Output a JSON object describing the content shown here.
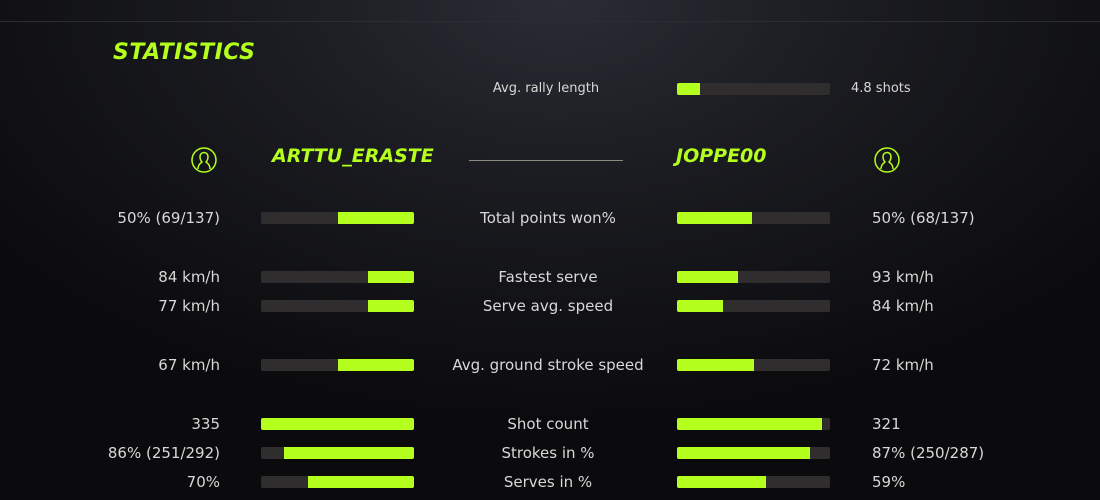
{
  "title": "STATISTICS",
  "accent_color": "#b4ff1e",
  "rally": {
    "label": "Avg. rally length",
    "value": "4.8 shots",
    "fill": 0.15
  },
  "players": {
    "left": {
      "name": "ARTTU_ERASTE",
      "icon": "user-circle-icon"
    },
    "right": {
      "name": "JOPPE00",
      "icon": "user-circle-icon"
    }
  },
  "stats": [
    {
      "label": "Total points won%",
      "left": "50% (69/137)",
      "right": "50% (68/137)",
      "left_fill": 0.5,
      "right_fill": 0.49
    },
    {
      "label": "Fastest serve",
      "left": "84 km/h",
      "right": "93 km/h",
      "left_fill": 0.3,
      "right_fill": 0.4
    },
    {
      "label": "Serve avg. speed",
      "left": "77 km/h",
      "right": "84 km/h",
      "left_fill": 0.3,
      "right_fill": 0.3
    },
    {
      "label": "Avg. ground stroke speed",
      "left": "67 km/h",
      "right": "72 km/h",
      "left_fill": 0.5,
      "right_fill": 0.5
    },
    {
      "label": "Shot count",
      "left": "335",
      "right": "321",
      "left_fill": 1.0,
      "right_fill": 0.95
    },
    {
      "label": "Strokes in %",
      "left": "86% (251/292)",
      "right": "87% (250/287)",
      "left_fill": 0.85,
      "right_fill": 0.87
    },
    {
      "label": "Serves in %",
      "left": "70%",
      "right": "59%",
      "left_fill": 0.69,
      "right_fill": 0.58
    }
  ]
}
